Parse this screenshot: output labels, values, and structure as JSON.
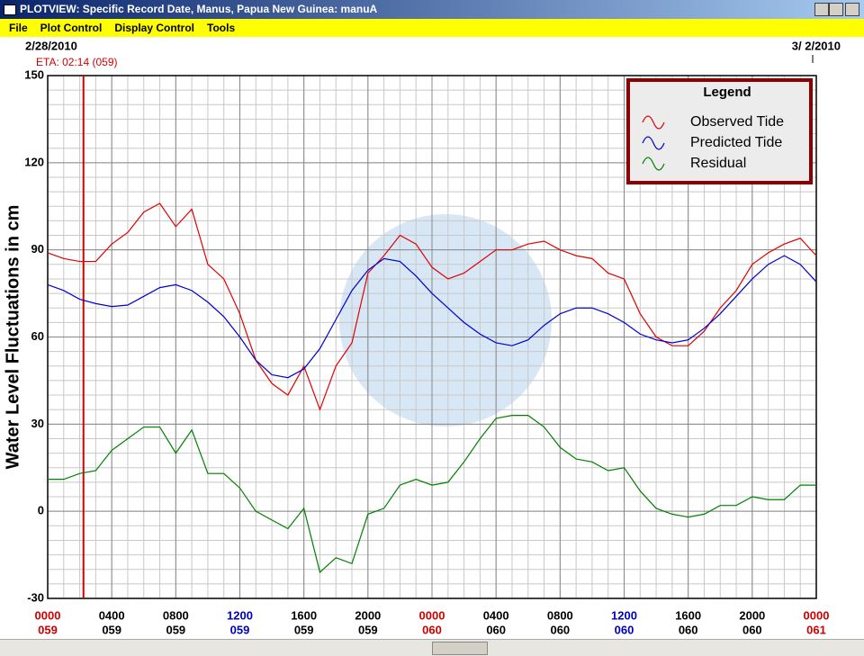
{
  "window": {
    "title": "PLOTVIEW: Specific Record Date, Manus, Papua New Guinea: manuA",
    "menu": [
      "File",
      "Plot Control",
      "Display Control",
      "Tools"
    ]
  },
  "chart_data": {
    "type": "line",
    "start_date": "2/28/2010",
    "end_date": "3/ 2/2010",
    "eta": {
      "label": "ETA: 02:14 (059)",
      "x": 2.233,
      "color": "#d00000"
    },
    "ylabel": "Water Level Fluctuations in cm",
    "legend_title": "Legend",
    "xlim": [
      0,
      48
    ],
    "ylim": [
      -30,
      150
    ],
    "yticks": [
      150,
      120,
      90,
      60,
      30,
      0,
      -30
    ],
    "xticks": [
      {
        "value": 0,
        "label": "0000",
        "day": "059",
        "color": "#d00000"
      },
      {
        "value": 4,
        "label": "0400",
        "day": "059",
        "color": "#000000"
      },
      {
        "value": 8,
        "label": "0800",
        "day": "059",
        "color": "#000000"
      },
      {
        "value": 12,
        "label": "1200",
        "day": "059",
        "color": "#0000c0"
      },
      {
        "value": 16,
        "label": "1600",
        "day": "059",
        "color": "#000000"
      },
      {
        "value": 20,
        "label": "2000",
        "day": "059",
        "color": "#000000"
      },
      {
        "value": 24,
        "label": "0000",
        "day": "060",
        "color": "#d00000"
      },
      {
        "value": 28,
        "label": "0400",
        "day": "060",
        "color": "#000000"
      },
      {
        "value": 32,
        "label": "0800",
        "day": "060",
        "color": "#000000"
      },
      {
        "value": 36,
        "label": "1200",
        "day": "060",
        "color": "#0000c0"
      },
      {
        "value": 40,
        "label": "1600",
        "day": "060",
        "color": "#000000"
      },
      {
        "value": 44,
        "label": "2000",
        "day": "060",
        "color": "#000000"
      },
      {
        "value": 48,
        "label": "0000",
        "day": "061",
        "color": "#d00000"
      }
    ],
    "grid": true,
    "xgrid_step": 1,
    "ygrid_step": 5,
    "x": [
      0,
      1,
      2,
      3,
      4,
      5,
      6,
      7,
      8,
      9,
      10,
      11,
      12,
      13,
      14,
      15,
      16,
      17,
      18,
      19,
      20,
      21,
      22,
      23,
      24,
      25,
      26,
      27,
      28,
      29,
      30,
      31,
      32,
      33,
      34,
      35,
      36,
      37,
      38,
      39,
      40,
      41,
      42,
      43,
      44,
      45,
      46,
      47,
      48
    ],
    "series": [
      {
        "name": "Observed Tide",
        "color": "#e00000",
        "values": [
          89,
          87,
          86,
          86,
          92,
          96,
          103,
          106,
          98,
          104,
          85,
          80,
          68,
          52,
          44,
          40,
          50,
          35,
          50,
          58,
          82,
          88,
          95,
          92,
          84,
          80,
          82,
          86,
          90,
          90,
          92,
          93,
          90,
          88,
          87,
          82,
          80,
          68,
          60,
          57,
          57,
          62,
          70,
          76,
          85,
          89,
          92,
          94,
          88
        ]
      },
      {
        "name": "Predicted Tide",
        "color": "#0000d0",
        "values": [
          78,
          76,
          73,
          71.5,
          70.5,
          71,
          74,
          77,
          78,
          76,
          72,
          67,
          60,
          52,
          47,
          46,
          49,
          56,
          66,
          76,
          83,
          87,
          86,
          81,
          75,
          70,
          65,
          61,
          58,
          57,
          59,
          64,
          68,
          70,
          70,
          68,
          65,
          61,
          59,
          58,
          59,
          63,
          68,
          74,
          80,
          85,
          88,
          85,
          79
        ]
      },
      {
        "name": "Residual",
        "color": "#008000",
        "values": [
          11,
          11,
          13,
          14,
          21,
          25,
          29,
          29,
          20,
          28,
          13,
          13,
          8,
          0,
          -3,
          -6,
          1,
          -21,
          -16,
          -18,
          -1,
          1,
          9,
          11,
          9,
          10,
          17,
          25,
          32,
          33,
          33,
          29,
          22,
          18,
          17,
          14,
          15,
          7,
          1,
          -1,
          -2,
          -1,
          2,
          2,
          5,
          4,
          4,
          9,
          9
        ]
      }
    ]
  }
}
